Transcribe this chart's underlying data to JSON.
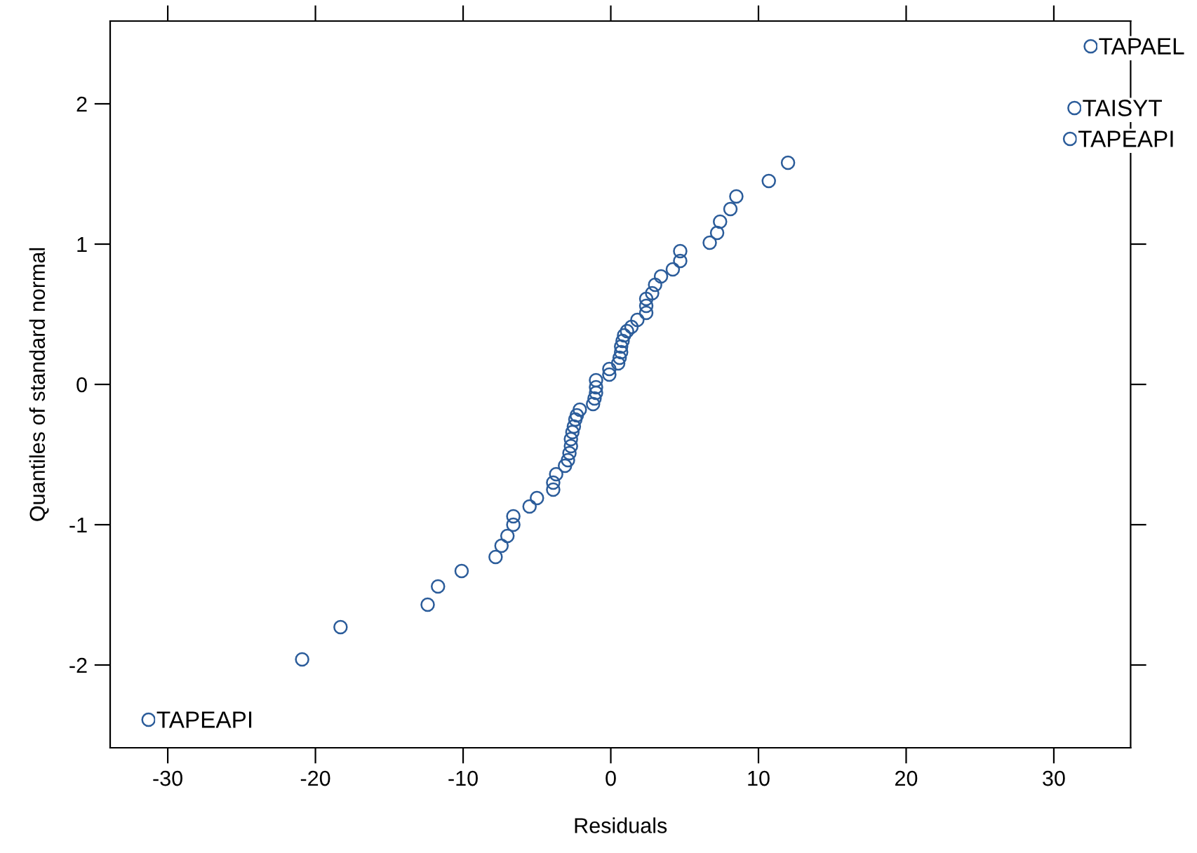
{
  "chart_data": {
    "type": "scatter",
    "xlabel": "Residuals",
    "ylabel": "Quantiles of standard normal",
    "xlim": [
      -33.9,
      35.2
    ],
    "ylim": [
      -2.59,
      2.59
    ],
    "xticks": [
      -30,
      -20,
      -10,
      0,
      10,
      20,
      30
    ],
    "yticks": [
      -2,
      -1,
      0,
      1,
      2
    ],
    "marker": "circle",
    "grid": false,
    "series": [
      {
        "color": "#2b5c9a",
        "x": [
          -31.3,
          -20.9,
          -18.3,
          -12.4,
          -11.7,
          -10.1,
          -7.8,
          -7.4,
          -7.0,
          -6.6,
          -6.6,
          -5.5,
          -5.0,
          -3.9,
          -3.9,
          -3.7,
          -3.1,
          -2.9,
          -2.8,
          -2.7,
          -2.7,
          -2.6,
          -2.5,
          -2.4,
          -2.3,
          -2.1,
          -1.2,
          -1.1,
          -1.0,
          -1.0,
          -1.0,
          -0.1,
          -0.1,
          0.5,
          0.6,
          0.7,
          0.7,
          0.8,
          0.9,
          1.1,
          1.4,
          1.8,
          2.4,
          2.4,
          2.4,
          2.8,
          3.0,
          3.4,
          4.2,
          4.7,
          4.7,
          6.7,
          7.2,
          7.4,
          8.1,
          8.5,
          10.7,
          12.0,
          31.1,
          31.4,
          32.5
        ],
        "values": [
          -2.39,
          -1.96,
          -1.73,
          -1.57,
          -1.44,
          -1.33,
          -1.23,
          -1.15,
          -1.08,
          -1.0,
          -0.94,
          -0.87,
          -0.81,
          -0.75,
          -0.7,
          -0.64,
          -0.58,
          -0.54,
          -0.49,
          -0.44,
          -0.39,
          -0.34,
          -0.3,
          -0.25,
          -0.22,
          -0.18,
          -0.14,
          -0.1,
          -0.06,
          -0.02,
          0.03,
          0.07,
          0.11,
          0.15,
          0.19,
          0.23,
          0.27,
          0.31,
          0.35,
          0.38,
          0.41,
          0.46,
          0.51,
          0.56,
          0.61,
          0.65,
          0.71,
          0.77,
          0.82,
          0.88,
          0.95,
          1.01,
          1.08,
          1.16,
          1.25,
          1.34,
          1.45,
          1.58,
          1.75,
          1.97,
          2.41
        ]
      }
    ],
    "annotations": [
      {
        "text": "TAPEAPI",
        "x": -31.3,
        "y": -2.39
      },
      {
        "text": "TAPAEL",
        "x": 32.5,
        "y": 2.41
      },
      {
        "text": "TAISYT",
        "x": 31.4,
        "y": 1.97
      },
      {
        "text": "TAPEAPI",
        "x": 31.1,
        "y": 1.75
      }
    ]
  }
}
